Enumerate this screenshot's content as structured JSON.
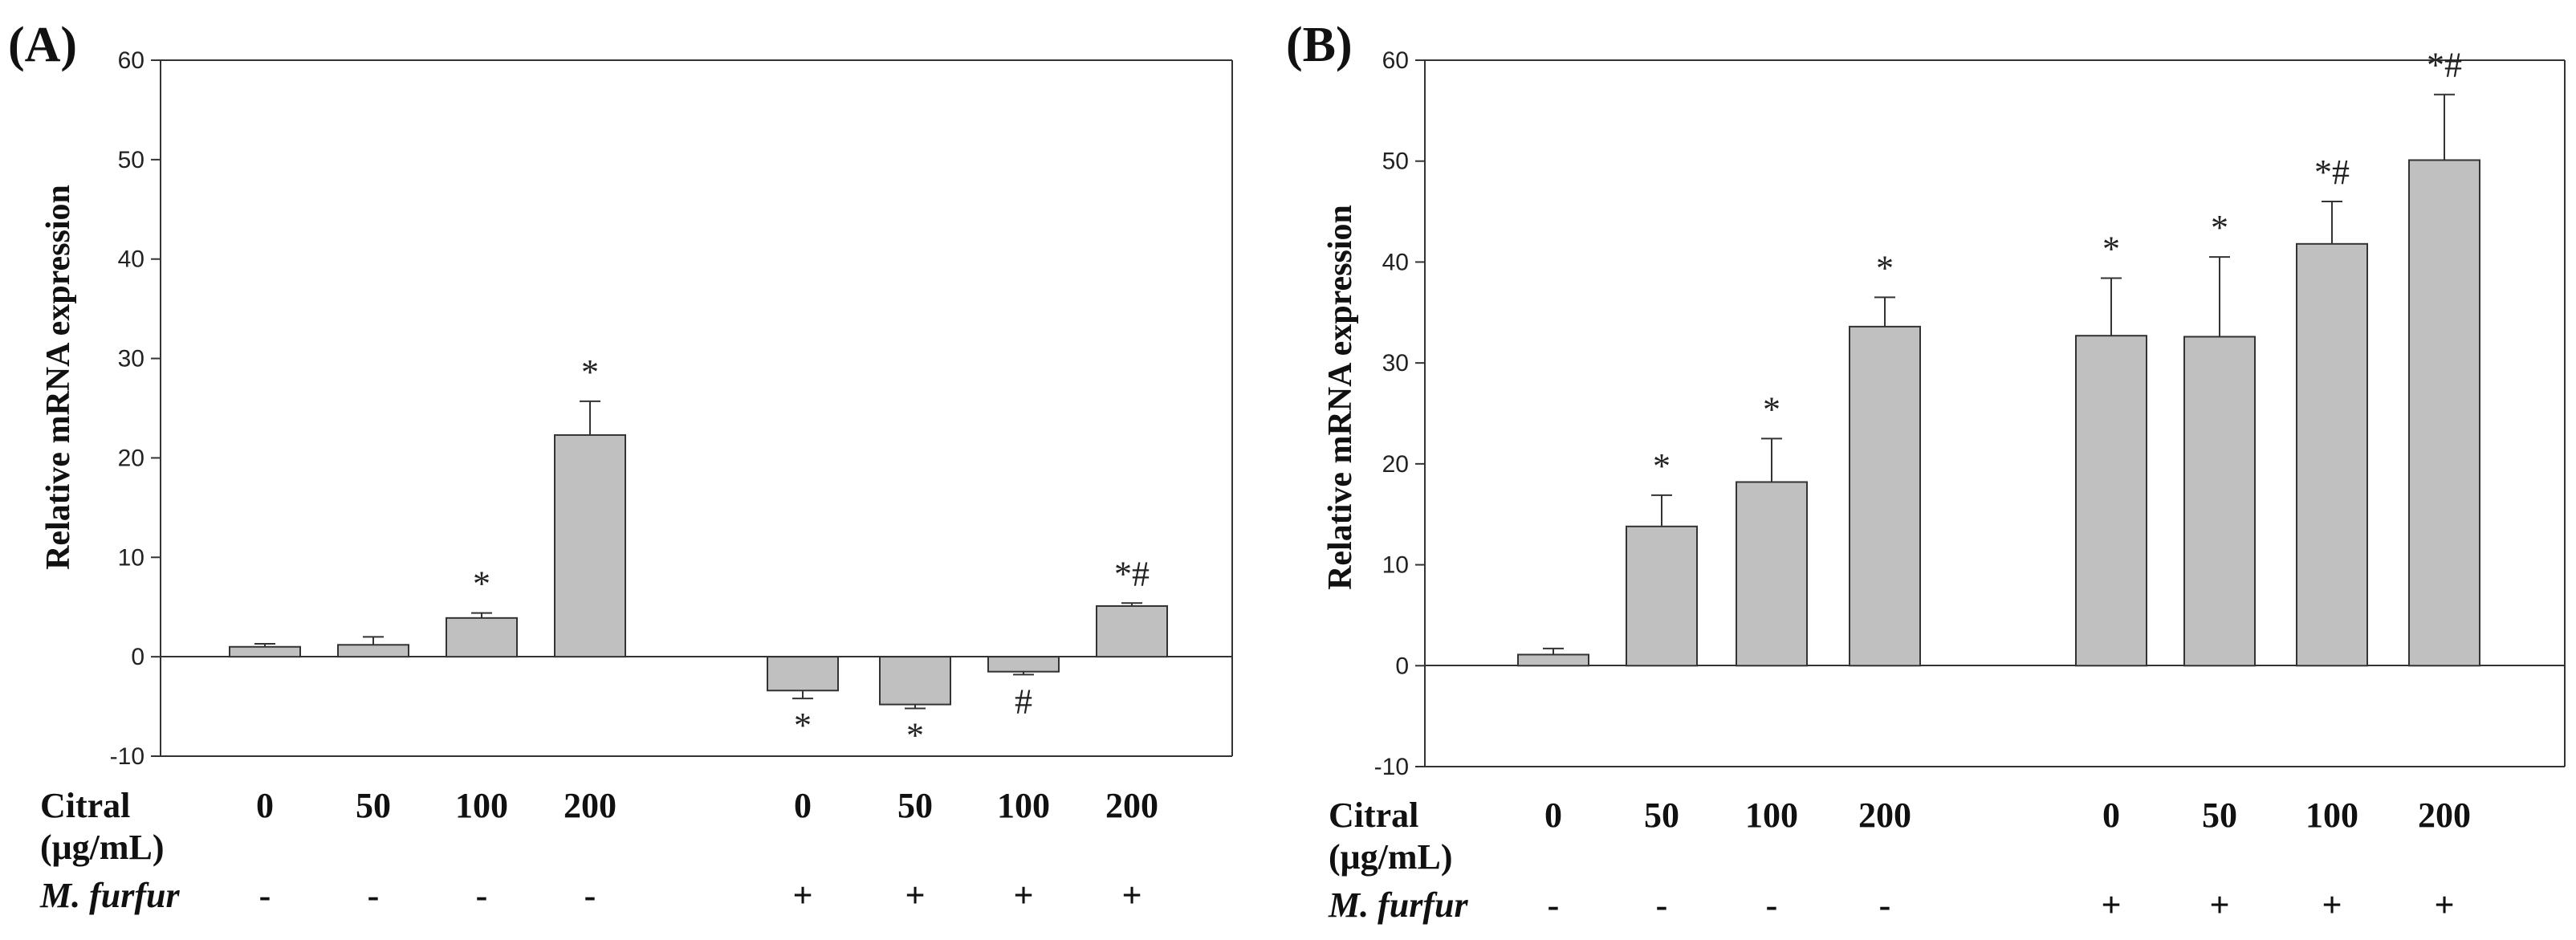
{
  "chart_data": [
    {
      "panel_label": "(A)",
      "type": "bar",
      "ylabel": "Relative mRNA expression",
      "ylim": [
        -10,
        60
      ],
      "yticks": [
        -10,
        0,
        10,
        20,
        30,
        40,
        50,
        60
      ],
      "grid": false,
      "bar_color": "#c0c0c0",
      "condition_labels": {
        "citral": "Citral",
        "unit": "(μg/mL)",
        "furfur": "M. furfur"
      },
      "groups": [
        {
          "furfur": "-",
          "bars": [
            {
              "citral": "0",
              "value": 1.0,
              "error": 0.3,
              "sig": ""
            },
            {
              "citral": "50",
              "value": 1.2,
              "error": 0.8,
              "sig": ""
            },
            {
              "citral": "100",
              "value": 3.9,
              "error": 0.5,
              "sig": "*"
            },
            {
              "citral": "200",
              "value": 22.3,
              "error": 3.4,
              "sig": "*"
            }
          ]
        },
        {
          "furfur": "+",
          "bars": [
            {
              "citral": "0",
              "value": -3.4,
              "error": 0.8,
              "sig": "*"
            },
            {
              "citral": "50",
              "value": -4.8,
              "error": 0.4,
              "sig": "*"
            },
            {
              "citral": "100",
              "value": -1.5,
              "error": 0.3,
              "sig": "#"
            },
            {
              "citral": "200",
              "value": 5.1,
              "error": 0.3,
              "sig": "*#"
            }
          ]
        }
      ]
    },
    {
      "panel_label": "(B)",
      "type": "bar",
      "ylabel": "Relative mRNA expression",
      "ylim": [
        -10,
        60
      ],
      "yticks": [
        -10,
        0,
        10,
        20,
        30,
        40,
        50,
        60
      ],
      "grid": false,
      "bar_color": "#c0c0c0",
      "condition_labels": {
        "citral": "Citral",
        "unit": "(μg/mL)",
        "furfur": "M. furfur"
      },
      "groups": [
        {
          "furfur": "-",
          "bars": [
            {
              "citral": "0",
              "value": 1.1,
              "error": 0.6,
              "sig": ""
            },
            {
              "citral": "50",
              "value": 13.8,
              "error": 3.1,
              "sig": "*"
            },
            {
              "citral": "100",
              "value": 18.2,
              "error": 4.3,
              "sig": "*"
            },
            {
              "citral": "200",
              "value": 33.6,
              "error": 2.9,
              "sig": "*"
            }
          ]
        },
        {
          "furfur": "+",
          "bars": [
            {
              "citral": "0",
              "value": 32.7,
              "error": 5.7,
              "sig": "*"
            },
            {
              "citral": "50",
              "value": 32.6,
              "error": 7.9,
              "sig": "*"
            },
            {
              "citral": "100",
              "value": 41.8,
              "error": 4.2,
              "sig": "*#"
            },
            {
              "citral": "200",
              "value": 50.1,
              "error": 6.5,
              "sig": "*#"
            }
          ]
        }
      ]
    }
  ]
}
